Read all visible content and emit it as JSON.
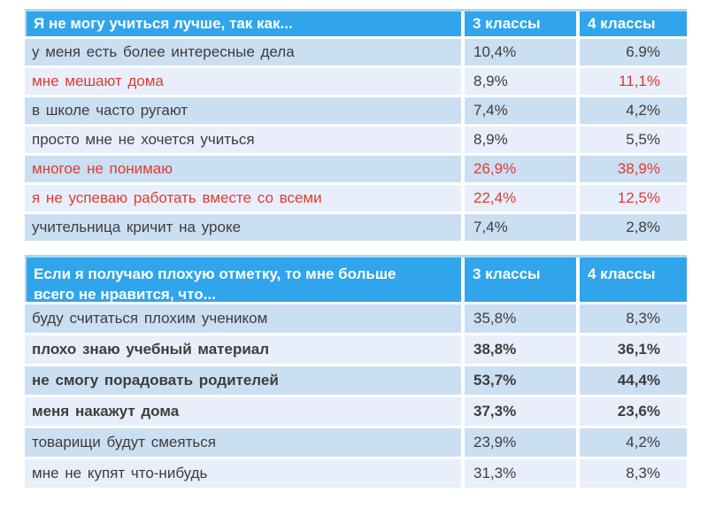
{
  "slide": {
    "background": "#ffffff"
  },
  "colors": {
    "header_bg": "#31a5ec",
    "header_text": "#ffffff",
    "row_dark": "#cbdff3",
    "row_light": "#e8effa",
    "text": "#3d3d3d",
    "red": "#e23a30",
    "table_border_top": "#a9d6f2"
  },
  "tables": [
    {
      "header": {
        "question": "Я не могу  учиться  лучше, так как...",
        "col3": "3 классы",
        "col4": "4 классы"
      },
      "rows": [
        {
          "label": "у меня  есть  более интересные  дела",
          "v3": "10,4%",
          "v4": "6.9%",
          "label_red": false,
          "v3_red": false,
          "v4_red": false,
          "bold": false
        },
        {
          "label": "мне  мешают  дома",
          "v3": "8,9%",
          "v4": "11,1%",
          "label_red": true,
          "v3_red": false,
          "v4_red": true,
          "bold": false
        },
        {
          "label": "в  школе  часто  ругают",
          "v3": "7,4%",
          "v4": "4,2%",
          "label_red": false,
          "v3_red": false,
          "v4_red": false,
          "bold": false
        },
        {
          "label": "просто  мне  не  хочется  учиться",
          "v3": "8,9%",
          "v4": "5,5%",
          "label_red": false,
          "v3_red": false,
          "v4_red": false,
          "bold": false
        },
        {
          "label": "многое  не  понимаю",
          "v3": "26,9%",
          "v4": "38,9%",
          "label_red": true,
          "v3_red": true,
          "v4_red": true,
          "bold": false
        },
        {
          "label": "я  не  успеваю  работать вместе  со  всеми",
          "v3": "22,4%",
          "v4": "12,5%",
          "label_red": true,
          "v3_red": true,
          "v4_red": true,
          "bold": false
        },
        {
          "label": "учительница  кричит  на  уроке",
          "v3": "7,4%",
          "v4": "2,8%",
          "label_red": false,
          "v3_red": false,
          "v4_red": false,
          "bold": false
        }
      ]
    },
    {
      "header": {
        "question": "Если я  получаю плохую  отметку, то мне больше\nвсего  не  нравится, что...",
        "col3": "3 классы",
        "col4": "4 классы"
      },
      "rows": [
        {
          "label": "буду считаться плохим  учеником",
          "v3": "35,8%",
          "v4": "8,3%",
          "label_red": false,
          "v3_red": false,
          "v4_red": false,
          "bold": false
        },
        {
          "label": "плохо знаю учебный материал",
          "v3": "38,8%",
          "v4": "36,1%",
          "label_red": false,
          "v3_red": false,
          "v4_red": false,
          "bold": true
        },
        {
          "label": "не смогу порадовать родителей",
          "v3": "53,7%",
          "v4": "44,4%",
          "label_red": false,
          "v3_red": false,
          "v4_red": false,
          "bold": true
        },
        {
          "label": "меня накажут дома",
          "v3": "37,3%",
          "v4": "23,6%",
          "label_red": false,
          "v3_red": false,
          "v4_red": false,
          "bold": true
        },
        {
          "label": "товарищи будут смеяться",
          "v3": "23,9%",
          "v4": "4,2%",
          "label_red": false,
          "v3_red": false,
          "v4_red": false,
          "bold": false
        },
        {
          "label": "мне не купят что-нибудь",
          "v3": "31,3%",
          "v4": "8,3%",
          "label_red": false,
          "v3_red": false,
          "v4_red": false,
          "bold": false
        }
      ]
    }
  ]
}
